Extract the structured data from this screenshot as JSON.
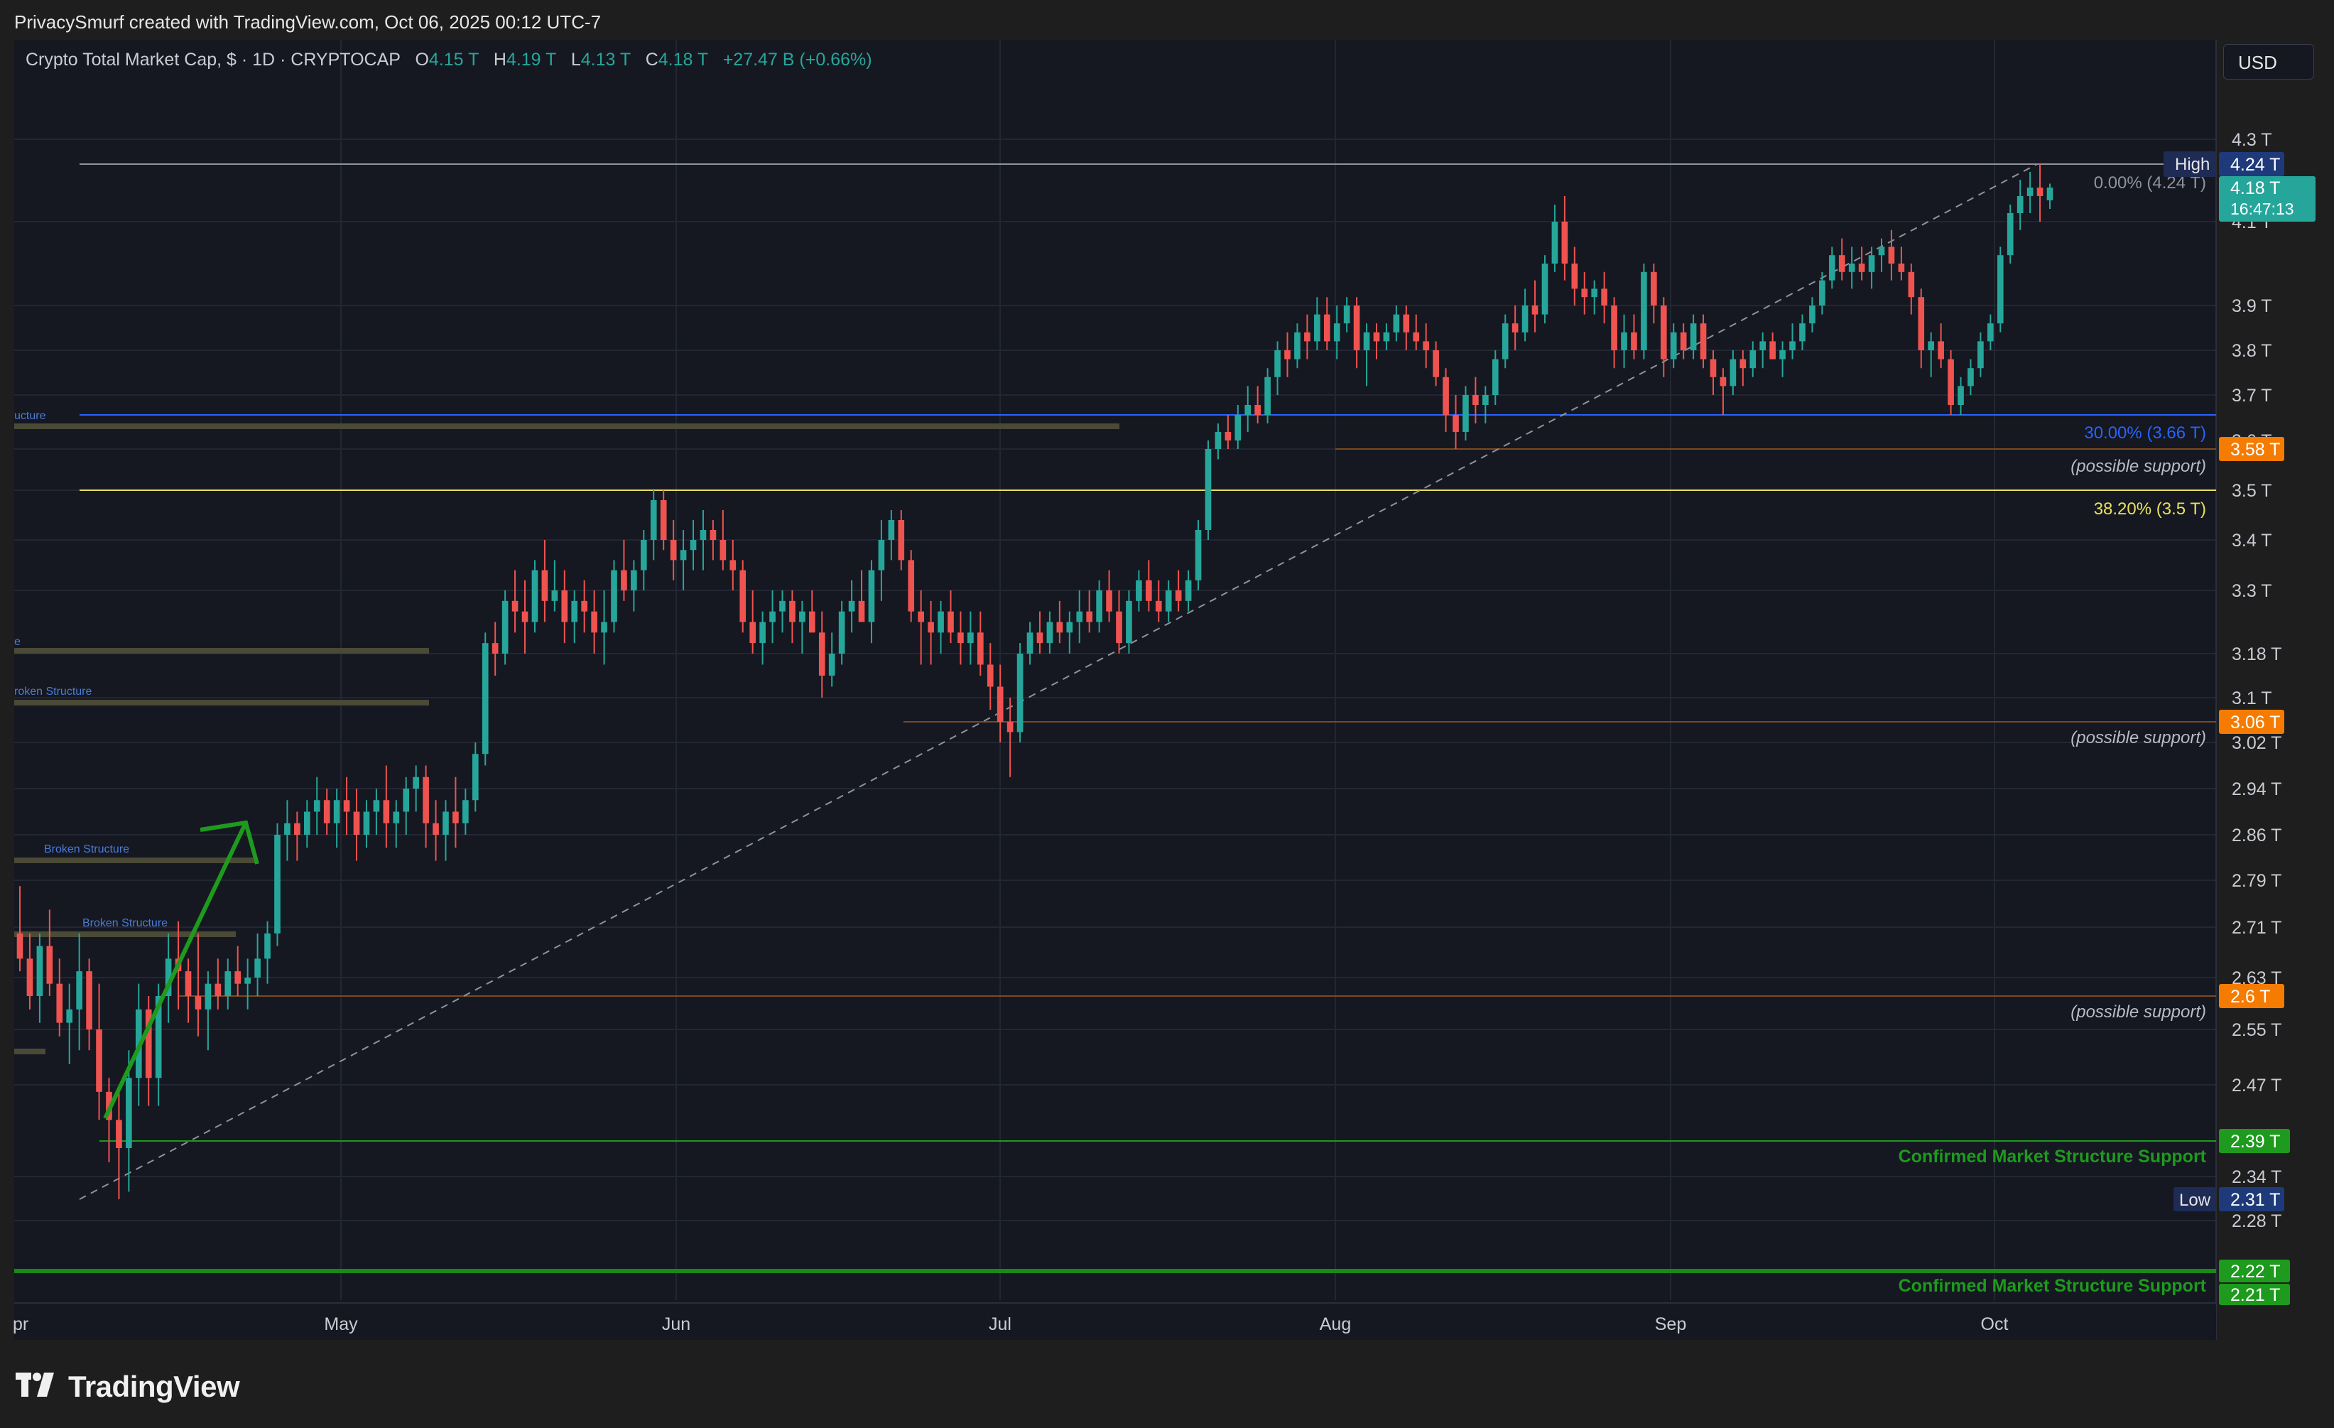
{
  "header": {
    "credit": "PrivacySmurf created with TradingView.com, Oct 06, 2025 00:12 UTC-7",
    "currency": "USD"
  },
  "legend": {
    "symbol": "Crypto Total Market Cap, $ · 1D · CRYPTOCAP",
    "open_label": "O",
    "open": "4.15 T",
    "high_label": "H",
    "high": "4.19 T",
    "low_label": "L",
    "low": "4.13 T",
    "close_label": "C",
    "close": "4.18 T",
    "change": "+27.47 B (+0.66%)"
  },
  "brand": {
    "name": "TradingView"
  },
  "colors": {
    "up": "#26a69a",
    "down": "#ef5350",
    "background": "#151821",
    "grid": "#232633",
    "green_level": "#1e9a1e",
    "blue_level": "#2962ff",
    "orange_level": "#f57c00",
    "yellow_level": "#e8e05a"
  },
  "chart_data": {
    "type": "candlestick",
    "x_ticks": [
      "pr",
      "May",
      "Jun",
      "Jul",
      "Aug",
      "Sep",
      "Oct"
    ],
    "y_ticks": [
      "4.3 T",
      "4.1 T",
      "3.9 T",
      "3.8 T",
      "3.7 T",
      "3.6 T",
      "3.5 T",
      "3.4 T",
      "3.3 T",
      "3.18 T",
      "3.1 T",
      "3.02 T",
      "2.94 T",
      "2.86 T",
      "2.79 T",
      "2.71 T",
      "2.63 T",
      "2.55 T",
      "2.47 T",
      "2.34 T",
      "2.28 T"
    ],
    "price_tags": {
      "high_label": "High",
      "high": "4.24 T",
      "last": "4.18 T",
      "countdown": "16:47:13",
      "level_358": "3.58 T",
      "level_306": "3.06 T",
      "level_26": "2.6 T",
      "level_239": "2.39 T",
      "low_label": "Low",
      "low": "2.31 T",
      "level_222": "2.22 T",
      "level_221": "2.21 T"
    },
    "fib_labels": {
      "f0": "0.00% (4.24 T)",
      "f30": "30.00% (3.66 T)",
      "f382": "38.20% (3.5 T)"
    },
    "annotations": {
      "support_1": "(possible support)",
      "support_2": "(possible support)",
      "support_3": "(possible support)",
      "cms_1": "Confirmed Market Structure Support",
      "cms_2": "Confirmed Market Structure Support",
      "broken_1": "ucture",
      "broken_2": "e",
      "broken_3": "roken Structure",
      "broken_4": "Broken Structure",
      "broken_5": "Broken Structure"
    },
    "levels": {
      "high": 4.24,
      "fib30": 3.66,
      "support_358": 3.58,
      "fib382": 3.5,
      "support_306": 3.06,
      "support_26": 2.6,
      "cms": 2.39,
      "low": 2.31,
      "cms_bottom": 2.22
    },
    "candles": [
      [
        2.7,
        2.78,
        2.64,
        2.66
      ],
      [
        2.66,
        2.7,
        2.58,
        2.6
      ],
      [
        2.6,
        2.7,
        2.56,
        2.68
      ],
      [
        2.68,
        2.74,
        2.6,
        2.62
      ],
      [
        2.62,
        2.66,
        2.54,
        2.56
      ],
      [
        2.56,
        2.62,
        2.5,
        2.58
      ],
      [
        2.58,
        2.7,
        2.52,
        2.64
      ],
      [
        2.64,
        2.66,
        2.52,
        2.55
      ],
      [
        2.55,
        2.62,
        2.42,
        2.46
      ],
      [
        2.46,
        2.48,
        2.36,
        2.42
      ],
      [
        2.42,
        2.46,
        2.31,
        2.38
      ],
      [
        2.38,
        2.52,
        2.32,
        2.48
      ],
      [
        2.48,
        2.62,
        2.44,
        2.58
      ],
      [
        2.58,
        2.6,
        2.44,
        2.48
      ],
      [
        2.48,
        2.62,
        2.44,
        2.6
      ],
      [
        2.6,
        2.7,
        2.56,
        2.66
      ],
      [
        2.66,
        2.72,
        2.58,
        2.64
      ],
      [
        2.64,
        2.66,
        2.56,
        2.6
      ],
      [
        2.6,
        2.7,
        2.54,
        2.58
      ],
      [
        2.58,
        2.64,
        2.52,
        2.62
      ],
      [
        2.62,
        2.66,
        2.58,
        2.6
      ],
      [
        2.6,
        2.66,
        2.58,
        2.64
      ],
      [
        2.64,
        2.68,
        2.6,
        2.62
      ],
      [
        2.62,
        2.66,
        2.58,
        2.63
      ],
      [
        2.63,
        2.7,
        2.6,
        2.66
      ],
      [
        2.66,
        2.72,
        2.62,
        2.7
      ],
      [
        2.7,
        2.88,
        2.68,
        2.86
      ],
      [
        2.86,
        2.92,
        2.82,
        2.88
      ],
      [
        2.88,
        2.9,
        2.82,
        2.86
      ],
      [
        2.86,
        2.92,
        2.84,
        2.9
      ],
      [
        2.9,
        2.96,
        2.86,
        2.92
      ],
      [
        2.92,
        2.94,
        2.86,
        2.88
      ],
      [
        2.88,
        2.94,
        2.84,
        2.92
      ],
      [
        2.92,
        2.96,
        2.86,
        2.9
      ],
      [
        2.9,
        2.94,
        2.82,
        2.86
      ],
      [
        2.86,
        2.92,
        2.84,
        2.9
      ],
      [
        2.9,
        2.94,
        2.86,
        2.92
      ],
      [
        2.92,
        2.98,
        2.84,
        2.88
      ],
      [
        2.88,
        2.92,
        2.84,
        2.9
      ],
      [
        2.9,
        2.96,
        2.86,
        2.94
      ],
      [
        2.94,
        2.98,
        2.9,
        2.96
      ],
      [
        2.96,
        2.98,
        2.84,
        2.88
      ],
      [
        2.88,
        2.92,
        2.82,
        2.86
      ],
      [
        2.86,
        2.92,
        2.82,
        2.9
      ],
      [
        2.9,
        2.96,
        2.84,
        2.88
      ],
      [
        2.88,
        2.94,
        2.86,
        2.92
      ],
      [
        2.92,
        3.02,
        2.9,
        3.0
      ],
      [
        3.0,
        3.22,
        2.98,
        3.2
      ],
      [
        3.2,
        3.24,
        3.14,
        3.18
      ],
      [
        3.18,
        3.3,
        3.16,
        3.28
      ],
      [
        3.28,
        3.34,
        3.22,
        3.26
      ],
      [
        3.26,
        3.32,
        3.18,
        3.24
      ],
      [
        3.24,
        3.36,
        3.22,
        3.34
      ],
      [
        3.34,
        3.4,
        3.24,
        3.28
      ],
      [
        3.28,
        3.36,
        3.26,
        3.3
      ],
      [
        3.3,
        3.34,
        3.2,
        3.24
      ],
      [
        3.24,
        3.3,
        3.2,
        3.28
      ],
      [
        3.28,
        3.32,
        3.22,
        3.26
      ],
      [
        3.26,
        3.3,
        3.18,
        3.22
      ],
      [
        3.22,
        3.3,
        3.16,
        3.24
      ],
      [
        3.24,
        3.36,
        3.22,
        3.34
      ],
      [
        3.34,
        3.4,
        3.28,
        3.3
      ],
      [
        3.3,
        3.36,
        3.26,
        3.34
      ],
      [
        3.34,
        3.42,
        3.3,
        3.4
      ],
      [
        3.4,
        3.5,
        3.36,
        3.48
      ],
      [
        3.48,
        3.5,
        3.38,
        3.4
      ],
      [
        3.4,
        3.44,
        3.32,
        3.36
      ],
      [
        3.36,
        3.42,
        3.3,
        3.38
      ],
      [
        3.38,
        3.44,
        3.34,
        3.4
      ],
      [
        3.4,
        3.46,
        3.34,
        3.42
      ],
      [
        3.42,
        3.44,
        3.36,
        3.4
      ],
      [
        3.4,
        3.46,
        3.34,
        3.36
      ],
      [
        3.36,
        3.4,
        3.3,
        3.34
      ],
      [
        3.34,
        3.36,
        3.22,
        3.24
      ],
      [
        3.24,
        3.3,
        3.18,
        3.2
      ],
      [
        3.2,
        3.26,
        3.16,
        3.24
      ],
      [
        3.24,
        3.3,
        3.2,
        3.26
      ],
      [
        3.26,
        3.3,
        3.22,
        3.28
      ],
      [
        3.28,
        3.3,
        3.2,
        3.24
      ],
      [
        3.24,
        3.28,
        3.18,
        3.26
      ],
      [
        3.26,
        3.3,
        3.22,
        3.22
      ],
      [
        3.22,
        3.26,
        3.1,
        3.14
      ],
      [
        3.14,
        3.22,
        3.12,
        3.18
      ],
      [
        3.18,
        3.28,
        3.16,
        3.26
      ],
      [
        3.26,
        3.32,
        3.22,
        3.28
      ],
      [
        3.28,
        3.34,
        3.24,
        3.24
      ],
      [
        3.24,
        3.36,
        3.2,
        3.34
      ],
      [
        3.34,
        3.44,
        3.28,
        3.4
      ],
      [
        3.4,
        3.46,
        3.36,
        3.44
      ],
      [
        3.44,
        3.46,
        3.34,
        3.36
      ],
      [
        3.36,
        3.38,
        3.24,
        3.26
      ],
      [
        3.26,
        3.3,
        3.16,
        3.24
      ],
      [
        3.24,
        3.28,
        3.16,
        3.22
      ],
      [
        3.22,
        3.28,
        3.18,
        3.26
      ],
      [
        3.26,
        3.3,
        3.2,
        3.22
      ],
      [
        3.22,
        3.26,
        3.16,
        3.2
      ],
      [
        3.2,
        3.26,
        3.16,
        3.22
      ],
      [
        3.22,
        3.26,
        3.14,
        3.16
      ],
      [
        3.16,
        3.2,
        3.08,
        3.12
      ],
      [
        3.12,
        3.16,
        3.02,
        3.06
      ],
      [
        3.06,
        3.1,
        2.96,
        3.04
      ],
      [
        3.04,
        3.2,
        3.02,
        3.18
      ],
      [
        3.18,
        3.24,
        3.16,
        3.22
      ],
      [
        3.22,
        3.26,
        3.18,
        3.2
      ],
      [
        3.2,
        3.26,
        3.18,
        3.24
      ],
      [
        3.24,
        3.28,
        3.2,
        3.22
      ],
      [
        3.22,
        3.26,
        3.18,
        3.24
      ],
      [
        3.24,
        3.3,
        3.2,
        3.26
      ],
      [
        3.26,
        3.3,
        3.22,
        3.24
      ],
      [
        3.24,
        3.32,
        3.22,
        3.3
      ],
      [
        3.3,
        3.34,
        3.24,
        3.26
      ],
      [
        3.26,
        3.3,
        3.18,
        3.2
      ],
      [
        3.2,
        3.3,
        3.18,
        3.28
      ],
      [
        3.28,
        3.34,
        3.26,
        3.32
      ],
      [
        3.32,
        3.36,
        3.26,
        3.28
      ],
      [
        3.28,
        3.32,
        3.24,
        3.26
      ],
      [
        3.26,
        3.32,
        3.24,
        3.3
      ],
      [
        3.3,
        3.34,
        3.26,
        3.28
      ],
      [
        3.28,
        3.34,
        3.26,
        3.32
      ],
      [
        3.32,
        3.44,
        3.3,
        3.42
      ],
      [
        3.42,
        3.6,
        3.4,
        3.58
      ],
      [
        3.58,
        3.64,
        3.56,
        3.62
      ],
      [
        3.62,
        3.66,
        3.58,
        3.6
      ],
      [
        3.6,
        3.68,
        3.58,
        3.66
      ],
      [
        3.66,
        3.72,
        3.62,
        3.68
      ],
      [
        3.68,
        3.72,
        3.64,
        3.66
      ],
      [
        3.66,
        3.76,
        3.64,
        3.74
      ],
      [
        3.74,
        3.82,
        3.7,
        3.8
      ],
      [
        3.8,
        3.84,
        3.74,
        3.78
      ],
      [
        3.78,
        3.86,
        3.76,
        3.84
      ],
      [
        3.84,
        3.88,
        3.78,
        3.82
      ],
      [
        3.82,
        3.92,
        3.8,
        3.88
      ],
      [
        3.88,
        3.92,
        3.8,
        3.82
      ],
      [
        3.82,
        3.9,
        3.78,
        3.86
      ],
      [
        3.86,
        3.92,
        3.84,
        3.9
      ],
      [
        3.9,
        3.92,
        3.76,
        3.8
      ],
      [
        3.8,
        3.86,
        3.72,
        3.84
      ],
      [
        3.84,
        3.86,
        3.78,
        3.82
      ],
      [
        3.82,
        3.86,
        3.8,
        3.84
      ],
      [
        3.84,
        3.9,
        3.82,
        3.88
      ],
      [
        3.88,
        3.9,
        3.8,
        3.84
      ],
      [
        3.84,
        3.88,
        3.8,
        3.82
      ],
      [
        3.82,
        3.86,
        3.76,
        3.8
      ],
      [
        3.8,
        3.82,
        3.72,
        3.74
      ],
      [
        3.74,
        3.76,
        3.62,
        3.66
      ],
      [
        3.66,
        3.7,
        3.58,
        3.62
      ],
      [
        3.62,
        3.72,
        3.6,
        3.7
      ],
      [
        3.7,
        3.74,
        3.64,
        3.68
      ],
      [
        3.68,
        3.72,
        3.64,
        3.7
      ],
      [
        3.7,
        3.8,
        3.68,
        3.78
      ],
      [
        3.78,
        3.88,
        3.76,
        3.86
      ],
      [
        3.86,
        3.9,
        3.8,
        3.84
      ],
      [
        3.84,
        3.94,
        3.82,
        3.9
      ],
      [
        3.9,
        3.96,
        3.84,
        3.88
      ],
      [
        3.88,
        4.02,
        3.86,
        4.0
      ],
      [
        4.0,
        4.14,
        3.98,
        4.1
      ],
      [
        4.1,
        4.16,
        3.96,
        4.0
      ],
      [
        4.0,
        4.04,
        3.9,
        3.94
      ],
      [
        3.94,
        3.98,
        3.88,
        3.92
      ],
      [
        3.92,
        3.96,
        3.88,
        3.94
      ],
      [
        3.94,
        3.98,
        3.86,
        3.9
      ],
      [
        3.9,
        3.92,
        3.76,
        3.8
      ],
      [
        3.8,
        3.88,
        3.76,
        3.84
      ],
      [
        3.84,
        3.88,
        3.78,
        3.8
      ],
      [
        3.8,
        4.0,
        3.78,
        3.98
      ],
      [
        3.98,
        4.0,
        3.86,
        3.9
      ],
      [
        3.9,
        3.92,
        3.74,
        3.78
      ],
      [
        3.78,
        3.86,
        3.76,
        3.84
      ],
      [
        3.84,
        3.86,
        3.78,
        3.8
      ],
      [
        3.8,
        3.88,
        3.78,
        3.86
      ],
      [
        3.86,
        3.88,
        3.76,
        3.78
      ],
      [
        3.78,
        3.8,
        3.7,
        3.74
      ],
      [
        3.74,
        3.76,
        3.66,
        3.72
      ],
      [
        3.72,
        3.8,
        3.7,
        3.78
      ],
      [
        3.78,
        3.8,
        3.72,
        3.76
      ],
      [
        3.76,
        3.82,
        3.74,
        3.8
      ],
      [
        3.8,
        3.84,
        3.76,
        3.82
      ],
      [
        3.82,
        3.84,
        3.78,
        3.78
      ],
      [
        3.78,
        3.82,
        3.74,
        3.8
      ],
      [
        3.8,
        3.86,
        3.78,
        3.82
      ],
      [
        3.82,
        3.88,
        3.8,
        3.86
      ],
      [
        3.86,
        3.92,
        3.84,
        3.9
      ],
      [
        3.9,
        3.98,
        3.88,
        3.96
      ],
      [
        3.96,
        4.04,
        3.94,
        4.02
      ],
      [
        4.02,
        4.06,
        3.96,
        3.98
      ],
      [
        3.98,
        4.04,
        3.94,
        4.0
      ],
      [
        4.0,
        4.04,
        3.96,
        3.98
      ],
      [
        3.98,
        4.04,
        3.94,
        4.02
      ],
      [
        4.02,
        4.06,
        3.98,
        4.04
      ],
      [
        4.04,
        4.08,
        3.96,
        4.0
      ],
      [
        4.0,
        4.04,
        3.96,
        3.98
      ],
      [
        3.98,
        4.0,
        3.88,
        3.92
      ],
      [
        3.92,
        3.94,
        3.76,
        3.8
      ],
      [
        3.8,
        3.84,
        3.74,
        3.82
      ],
      [
        3.82,
        3.86,
        3.76,
        3.78
      ],
      [
        3.78,
        3.8,
        3.66,
        3.68
      ],
      [
        3.68,
        3.74,
        3.66,
        3.72
      ],
      [
        3.72,
        3.78,
        3.7,
        3.76
      ],
      [
        3.76,
        3.84,
        3.74,
        3.82
      ],
      [
        3.82,
        3.88,
        3.8,
        3.86
      ],
      [
        3.86,
        4.04,
        3.84,
        4.02
      ],
      [
        4.02,
        4.14,
        4.0,
        4.12
      ],
      [
        4.12,
        4.2,
        4.08,
        4.16
      ],
      [
        4.16,
        4.22,
        4.12,
        4.18
      ],
      [
        4.18,
        4.24,
        4.1,
        4.16
      ],
      [
        4.15,
        4.19,
        4.13,
        4.18
      ]
    ]
  }
}
